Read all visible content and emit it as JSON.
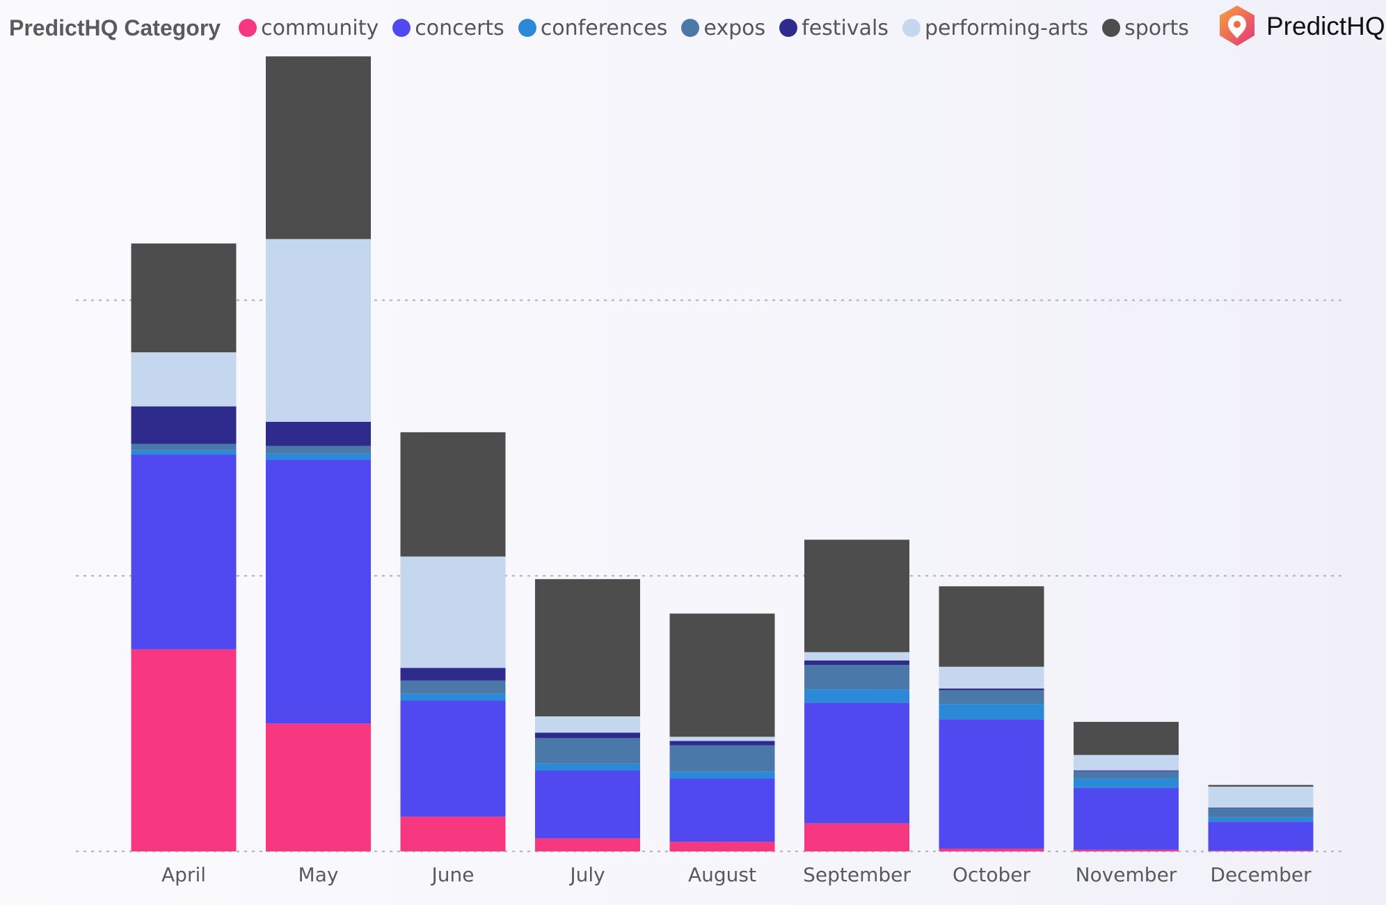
{
  "legend": {
    "title": "PredictHQ Category"
  },
  "brand": {
    "name": "PredictHQ",
    "accent": "#f26a3d",
    "accent_dark": "#e0357a"
  },
  "chart_data": {
    "type": "bar",
    "stacked": true,
    "title": "",
    "xlabel": "",
    "ylabel": "",
    "ylim": [
      0,
      290
    ],
    "grid": true,
    "gridlines": [
      0,
      100,
      200
    ],
    "legend_position": "top",
    "categories": [
      "April",
      "May",
      "June",
      "July",
      "August",
      "September",
      "October",
      "November",
      "December"
    ],
    "series": [
      {
        "name": "community",
        "color": "#f7377f",
        "values": [
          73.3,
          46.4,
          12.6,
          4.7,
          3.5,
          10.2,
          1.0,
          0.6,
          0.3
        ]
      },
      {
        "name": "concerts",
        "color": "#5149f0",
        "values": [
          70.7,
          95.7,
          42.1,
          24.6,
          22.9,
          43.8,
          46.9,
          22.4,
          10.5
        ]
      },
      {
        "name": "conferences",
        "color": "#2b8ad7",
        "values": [
          1.6,
          2.3,
          2.6,
          2.6,
          2.6,
          4.7,
          5.6,
          3.5,
          1.6
        ]
      },
      {
        "name": "expos",
        "color": "#4a79a9",
        "values": [
          2.3,
          2.7,
          4.7,
          9.2,
          9.5,
          9.0,
          5.0,
          2.6,
          3.3
        ]
      },
      {
        "name": "festivals",
        "color": "#2e2b8c",
        "values": [
          13.6,
          8.8,
          4.6,
          2.0,
          1.6,
          1.6,
          0.6,
          0.3,
          0.2
        ]
      },
      {
        "name": "performing-arts",
        "color": "#c5d7ee",
        "values": [
          19.6,
          66.3,
          40.4,
          5.9,
          1.5,
          3.0,
          7.9,
          5.6,
          7.6
        ]
      },
      {
        "name": "sports",
        "color": "#4d4d4d",
        "values": [
          39.5,
          66.3,
          45.1,
          49.8,
          44.7,
          40.8,
          29.2,
          12.0,
          0.6
        ]
      }
    ]
  }
}
